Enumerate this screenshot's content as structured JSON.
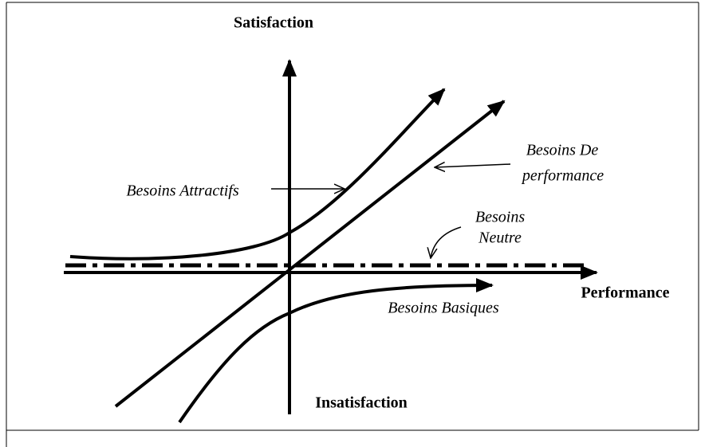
{
  "axes": {
    "y_top": "Satisfaction",
    "y_bottom": "Insatisfaction",
    "x_right": "Performance"
  },
  "curves": {
    "attractive": "Besoins Attractifs",
    "performance": [
      "Besoins De",
      "performance"
    ],
    "neutral": [
      "Besoins",
      "Neutre"
    ],
    "basic": "Besoins Basiques"
  }
}
